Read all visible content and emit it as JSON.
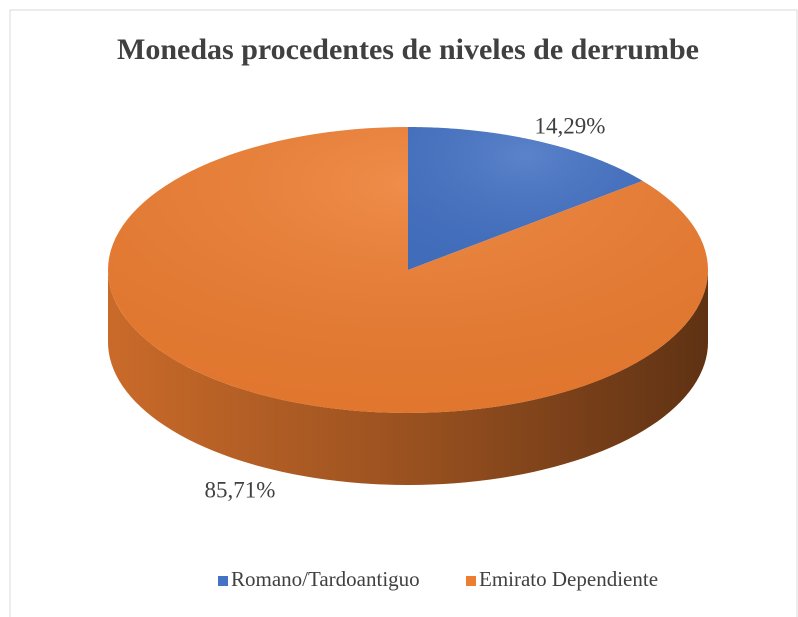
{
  "chart_data": {
    "type": "pie",
    "title": "Monedas procedentes de niveles de derrumbe",
    "categories": [
      "Romano/Tardoantiguo",
      "Emirato Dependiente"
    ],
    "series": [
      {
        "name": "Monedas",
        "values": [
          14.29,
          85.71
        ],
        "value_labels": [
          "14,29%",
          "85,71%"
        ],
        "colors": [
          "#4472c4",
          "#ed7d31"
        ]
      }
    ],
    "legend": "bottom"
  }
}
